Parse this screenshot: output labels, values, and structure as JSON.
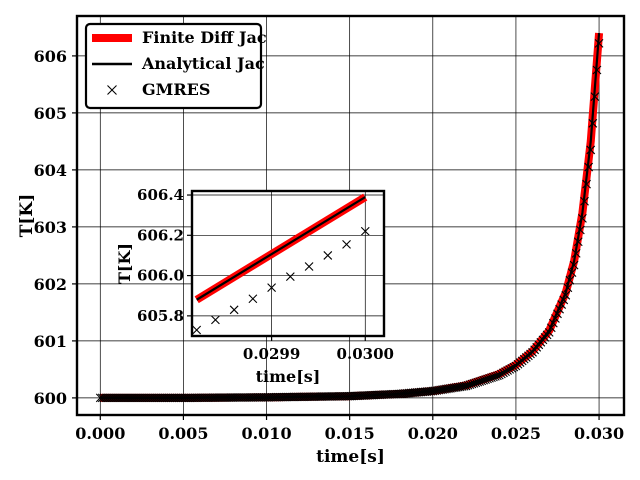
{
  "chart_data": [
    {
      "type": "line",
      "xlabel": "time[s]",
      "ylabel": "T[K]",
      "xlim": [
        -0.0014,
        0.0315
      ],
      "ylim": [
        599.7,
        606.7
      ],
      "xticks": [
        0.0,
        0.005,
        0.01,
        0.015,
        0.02,
        0.025,
        0.03
      ],
      "xtick_labels": [
        "0.000",
        "0.005",
        "0.010",
        "0.015",
        "0.020",
        "0.025",
        "0.030"
      ],
      "yticks": [
        600,
        601,
        602,
        603,
        604,
        605,
        606
      ],
      "ytick_labels": [
        "600",
        "601",
        "602",
        "603",
        "604",
        "605",
        "606"
      ],
      "grid": true,
      "legend_position": "top-left",
      "series": [
        {
          "name": "Finite Diff Jac",
          "style": "line",
          "color": "#ff0000",
          "x": [
            0.0,
            0.005,
            0.01,
            0.015,
            0.018,
            0.02,
            0.022,
            0.024,
            0.025,
            0.026,
            0.027,
            0.028,
            0.0285,
            0.029,
            0.0295,
            0.03
          ],
          "y": [
            600.0,
            600.0,
            600.01,
            600.03,
            600.07,
            600.12,
            600.22,
            600.42,
            600.58,
            600.82,
            601.18,
            601.85,
            602.4,
            603.25,
            604.5,
            606.4
          ]
        },
        {
          "name": "Analytical Jac",
          "style": "line",
          "color": "#000000",
          "x": [
            0.0,
            0.005,
            0.01,
            0.015,
            0.018,
            0.02,
            0.022,
            0.024,
            0.025,
            0.026,
            0.027,
            0.028,
            0.0285,
            0.029,
            0.0295,
            0.03
          ],
          "y": [
            600.0,
            600.0,
            600.01,
            600.03,
            600.07,
            600.12,
            600.22,
            600.42,
            600.58,
            600.82,
            601.18,
            601.85,
            602.4,
            603.25,
            604.5,
            606.4
          ]
        },
        {
          "name": "GMRES",
          "style": "marker-x",
          "color": "#000000",
          "x": [
            0.0,
            0.005,
            0.01,
            0.015,
            0.018,
            0.02,
            0.022,
            0.024,
            0.025,
            0.026,
            0.027,
            0.028,
            0.0285,
            0.029,
            0.0295,
            0.03
          ],
          "y": [
            600.0,
            600.0,
            600.01,
            600.03,
            600.07,
            600.12,
            600.21,
            600.4,
            600.56,
            600.8,
            601.15,
            601.8,
            602.33,
            603.15,
            604.35,
            606.22
          ]
        }
      ]
    },
    {
      "type": "line",
      "role": "inset",
      "xlabel": "time[s]",
      "ylabel": "T[K]",
      "xlim": [
        29.815,
        30.02
      ],
      "xlim_note": "time in units of 1e-3 s",
      "ylim": [
        605.7,
        606.42
      ],
      "xticks": [
        29.9,
        30.0
      ],
      "xtick_labels": [
        "0.0299",
        "0.0300"
      ],
      "yticks": [
        605.8,
        606.0,
        606.2,
        606.4
      ],
      "ytick_labels": [
        "605.8",
        "606.0",
        "606.2",
        "606.4"
      ],
      "grid": true,
      "series": [
        {
          "name": "Finite Diff Jac",
          "style": "line",
          "color": "#ff0000",
          "x": [
            29.82,
            30.0
          ],
          "y": [
            605.88,
            606.39
          ]
        },
        {
          "name": "Analytical Jac",
          "style": "line",
          "color": "#000000",
          "x": [
            29.82,
            30.0
          ],
          "y": [
            605.88,
            606.39
          ]
        },
        {
          "name": "GMRES",
          "style": "marker-x",
          "color": "#000000",
          "x": [
            29.82,
            29.84,
            29.86,
            29.88,
            29.9,
            29.92,
            29.94,
            29.96,
            29.98,
            30.0
          ],
          "y": [
            605.73,
            605.78,
            605.83,
            605.885,
            605.94,
            605.995,
            606.045,
            606.1,
            606.155,
            606.22
          ]
        }
      ]
    }
  ]
}
